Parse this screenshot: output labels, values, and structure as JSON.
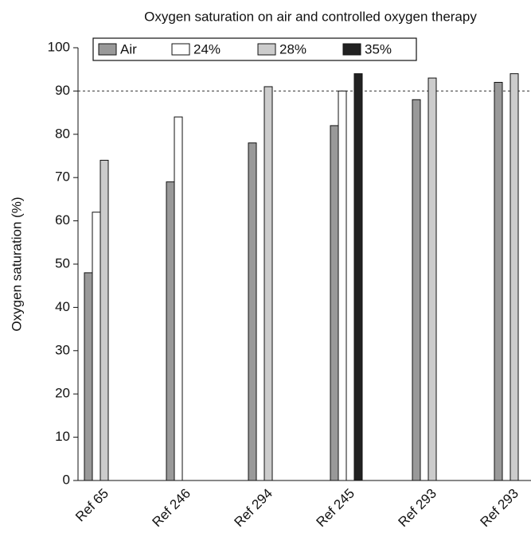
{
  "chart_data": {
    "type": "bar",
    "title": "Oxygen saturation on air and controlled oxygen therapy",
    "y_label": "Oxygen saturation (%)",
    "categories": [
      "Ref 65",
      "Ref 246",
      "Ref 294",
      "Ref 245",
      "Ref 293",
      "Ref 293"
    ],
    "series": [
      {
        "name": "Air",
        "color": "#999999",
        "values": [
          48,
          69,
          78,
          82,
          88,
          92
        ]
      },
      {
        "name": "24%",
        "color": "#ffffff",
        "values": [
          62,
          84,
          null,
          90,
          null,
          null
        ]
      },
      {
        "name": "28%",
        "color": "#cccccc",
        "values": [
          74,
          null,
          91,
          null,
          93,
          94
        ]
      },
      {
        "name": "35%",
        "color": "#222222",
        "values": [
          null,
          null,
          null,
          94,
          null,
          null
        ]
      }
    ],
    "ylim": [
      0,
      100
    ],
    "yticks": [
      0,
      10,
      20,
      30,
      40,
      50,
      60,
      70,
      80,
      90,
      100
    ],
    "reference_line": 90,
    "legend": "top"
  }
}
